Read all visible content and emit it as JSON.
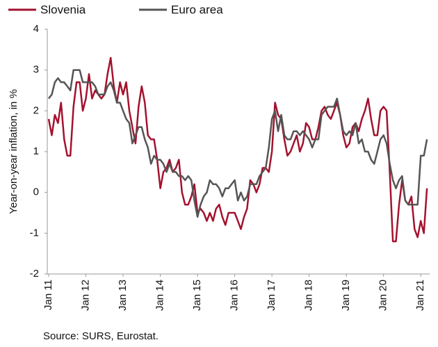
{
  "chart_data": {
    "type": "line",
    "y_label": "Year-on-year inflation, in %",
    "source": "Source: SURS, Eurostat.",
    "categories": [
      "Jan 11",
      null,
      null,
      null,
      null,
      null,
      null,
      null,
      null,
      null,
      null,
      null,
      "Jan 12",
      null,
      null,
      null,
      null,
      null,
      null,
      null,
      null,
      null,
      null,
      null,
      "Jan 13",
      null,
      null,
      null,
      null,
      null,
      null,
      null,
      null,
      null,
      null,
      null,
      "Jan 14",
      null,
      null,
      null,
      null,
      null,
      null,
      null,
      null,
      null,
      null,
      null,
      "Jan 15",
      null,
      null,
      null,
      null,
      null,
      null,
      null,
      null,
      null,
      null,
      null,
      "Jan 16",
      null,
      null,
      null,
      null,
      null,
      null,
      null,
      null,
      null,
      null,
      null,
      "Jan 17",
      null,
      null,
      null,
      null,
      null,
      null,
      null,
      null,
      null,
      null,
      null,
      "Jan 18",
      null,
      null,
      null,
      null,
      null,
      null,
      null,
      null,
      null,
      null,
      null,
      "Jan 19",
      null,
      null,
      null,
      null,
      null,
      null,
      null,
      null,
      null,
      null,
      null,
      "Jan 20",
      null,
      null,
      null,
      null,
      null,
      null,
      null,
      null,
      null,
      null,
      null,
      "Jan 21",
      null,
      null
    ],
    "series": [
      {
        "name": "Slovenia",
        "color": "#a3122e",
        "values": [
          1.8,
          1.4,
          1.9,
          1.7,
          2.2,
          1.3,
          0.9,
          0.9,
          2.1,
          2.7,
          2.7,
          2.0,
          2.3,
          2.9,
          2.3,
          2.5,
          2.4,
          2.3,
          2.4,
          2.9,
          3.3,
          2.6,
          2.2,
          2.7,
          2.4,
          2.7,
          2.0,
          1.6,
          1.2,
          2.1,
          2.6,
          2.2,
          1.4,
          1.3,
          1.3,
          0.8,
          0.1,
          0.5,
          0.6,
          0.8,
          0.5,
          0.6,
          0.8,
          0.0,
          -0.3,
          -0.3,
          -0.1,
          0.2,
          -0.5,
          -0.4,
          -0.5,
          -0.7,
          -0.5,
          -0.7,
          -0.4,
          -0.3,
          -0.6,
          -0.8,
          -0.5,
          -0.5,
          -0.5,
          -0.7,
          -0.9,
          -0.6,
          -0.4,
          0.3,
          0.2,
          0.0,
          0.2,
          0.6,
          0.6,
          0.5,
          1.0,
          2.2,
          1.9,
          1.8,
          1.3,
          0.9,
          1.0,
          1.2,
          1.4,
          1.0,
          1.2,
          1.7,
          1.6,
          1.3,
          1.3,
          1.6,
          2.0,
          2.1,
          1.9,
          1.8,
          2.0,
          2.2,
          1.9,
          1.4,
          1.1,
          1.2,
          1.6,
          1.7,
          1.5,
          1.8,
          2.0,
          2.3,
          1.8,
          1.4,
          1.4,
          2.0,
          2.1,
          2.0,
          0.5,
          -1.2,
          -1.2,
          -0.3,
          0.3,
          -0.2,
          -0.3,
          -0.1,
          -0.9,
          -1.1,
          -0.7,
          -1.0,
          0.1
        ]
      },
      {
        "name": "Euro area",
        "color": "#555555",
        "values": [
          2.3,
          2.4,
          2.7,
          2.8,
          2.7,
          2.7,
          2.6,
          2.5,
          3.0,
          3.0,
          3.0,
          2.7,
          2.7,
          2.7,
          2.7,
          2.6,
          2.4,
          2.4,
          2.4,
          2.6,
          2.7,
          2.5,
          2.2,
          2.2,
          2.0,
          1.8,
          1.7,
          1.2,
          1.4,
          1.6,
          1.6,
          1.3,
          1.1,
          0.7,
          0.9,
          0.8,
          0.8,
          0.7,
          0.5,
          0.7,
          0.5,
          0.5,
          0.4,
          0.4,
          0.3,
          0.4,
          0.3,
          -0.2,
          -0.6,
          -0.3,
          -0.1,
          0.0,
          0.3,
          0.2,
          0.2,
          0.1,
          -0.1,
          0.1,
          0.1,
          0.2,
          0.3,
          -0.2,
          0.0,
          -0.2,
          -0.1,
          0.2,
          0.2,
          0.2,
          0.4,
          0.5,
          0.6,
          1.1,
          1.8,
          2.0,
          1.5,
          1.9,
          1.4,
          1.3,
          1.3,
          1.5,
          1.5,
          1.4,
          1.5,
          1.4,
          1.3,
          1.1,
          1.3,
          1.3,
          1.9,
          2.0,
          2.1,
          2.1,
          2.1,
          2.3,
          1.9,
          1.5,
          1.4,
          1.5,
          1.4,
          1.7,
          1.2,
          1.3,
          1.0,
          1.0,
          0.8,
          0.7,
          1.0,
          1.3,
          1.4,
          1.2,
          0.7,
          0.3,
          0.1,
          0.3,
          0.4,
          -0.2,
          -0.3,
          -0.3,
          -0.3,
          -0.3,
          0.9,
          0.9,
          1.3
        ]
      }
    ],
    "ylim": [
      -2,
      4
    ],
    "yticks": [
      -2,
      -1,
      0,
      1,
      2,
      3,
      4
    ],
    "grid": false,
    "legend": "top-left"
  }
}
